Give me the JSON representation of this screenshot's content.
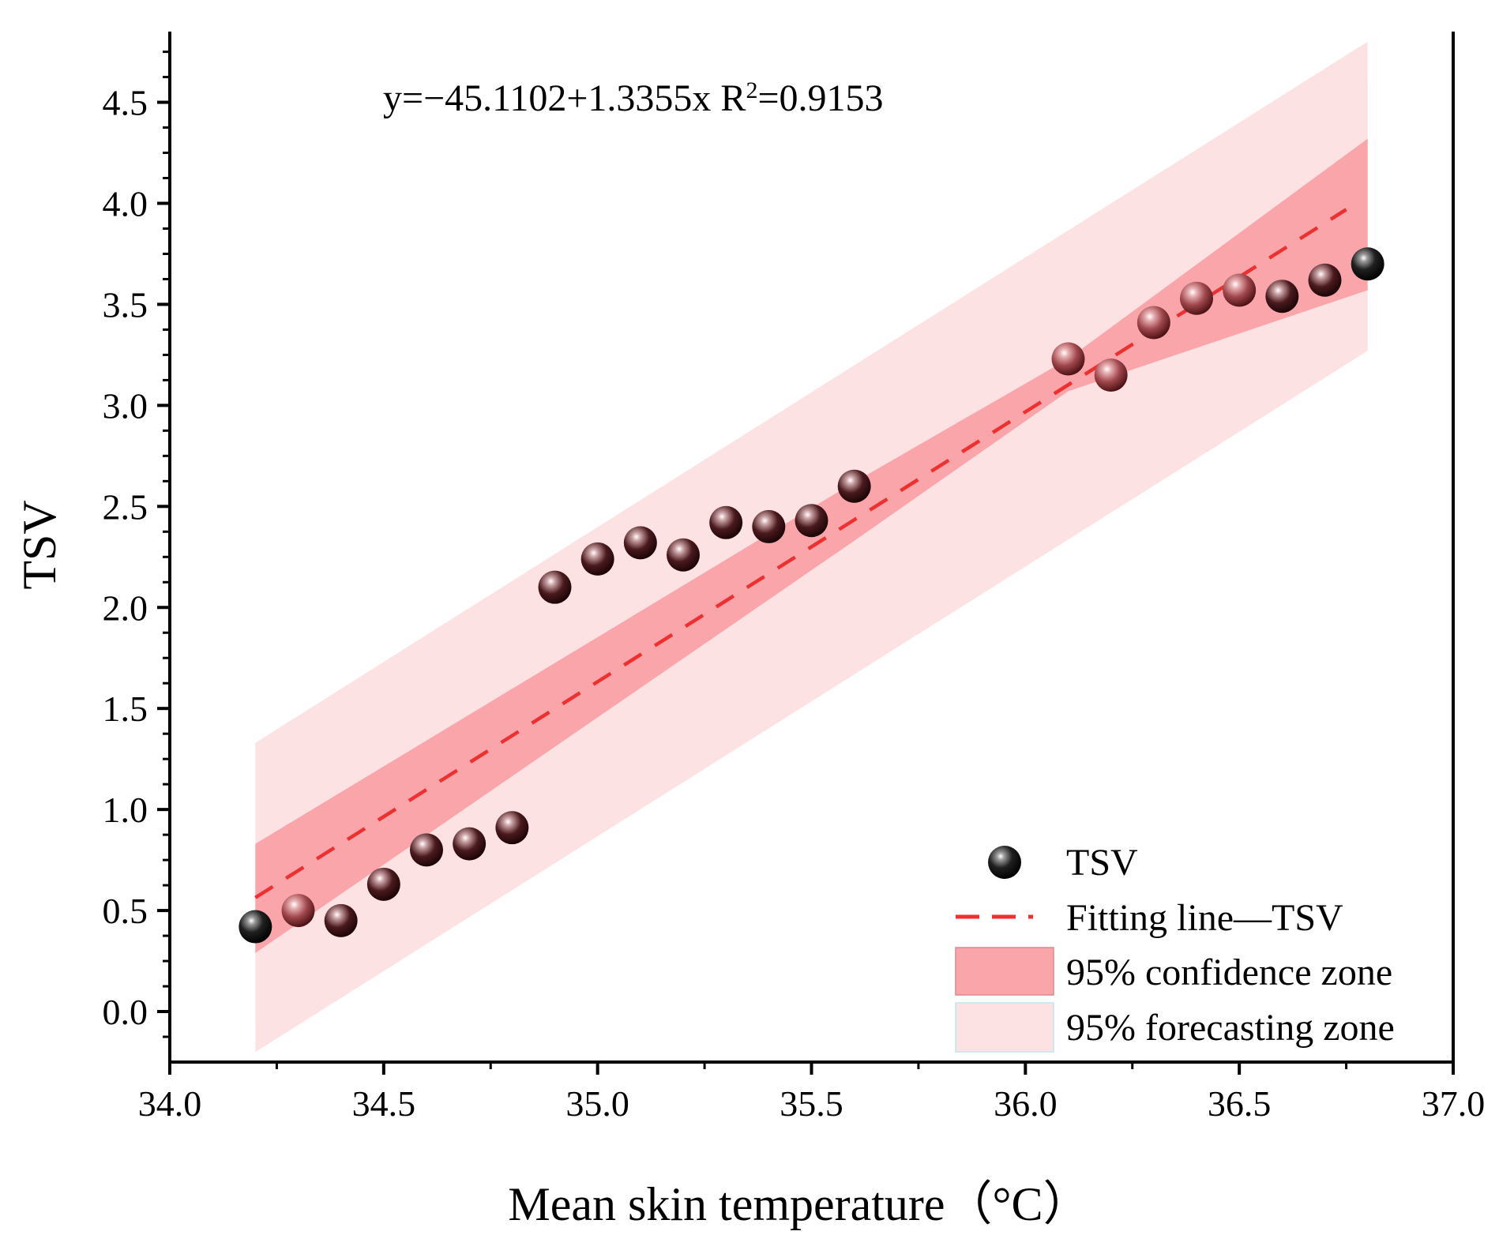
{
  "chart_data": {
    "type": "scatter",
    "title": "",
    "xlabel": "Mean skin temperature（°C）",
    "ylabel": "TSV",
    "xlim": [
      34.0,
      37.0
    ],
    "ylim": [
      -0.25,
      4.85
    ],
    "x_ticks": [
      34.0,
      34.5,
      35.0,
      35.5,
      36.0,
      36.5,
      37.0
    ],
    "x_tick_labels": [
      "34.0",
      "34.5",
      "35.0",
      "35.5",
      "36.0",
      "36.5",
      "37.0"
    ],
    "y_ticks": [
      0.0,
      0.5,
      1.0,
      1.5,
      2.0,
      2.5,
      3.0,
      3.5,
      4.0,
      4.5
    ],
    "y_tick_labels": [
      "0.0",
      "0.5",
      "1.0",
      "1.5",
      "2.0",
      "2.5",
      "3.0",
      "3.5",
      "4.0",
      "4.5"
    ],
    "grid": false,
    "equation": {
      "prefix": "y=−45.1102+1.3355x  R",
      "superscript": "2",
      "suffix": "=0.9153"
    },
    "fit": {
      "intercept": -45.1102,
      "slope": 1.3355,
      "r2": 0.9153,
      "x_range": [
        34.2,
        36.75
      ]
    },
    "confidence_zone": {
      "x": [
        34.2,
        35.6,
        36.1,
        36.8
      ],
      "upper": [
        0.83,
        2.62,
        3.23,
        4.32
      ],
      "lower": [
        0.29,
        2.33,
        3.07,
        3.57
      ]
    },
    "forecasting_zone": {
      "x": [
        34.2,
        36.8
      ],
      "upper": [
        1.33,
        4.8
      ],
      "lower": [
        -0.2,
        3.27
      ]
    },
    "series": [
      {
        "name": "TSV",
        "points": [
          {
            "x": 34.2,
            "y": 0.42
          },
          {
            "x": 34.3,
            "y": 0.5
          },
          {
            "x": 34.4,
            "y": 0.45
          },
          {
            "x": 34.5,
            "y": 0.63
          },
          {
            "x": 34.6,
            "y": 0.8
          },
          {
            "x": 34.7,
            "y": 0.83
          },
          {
            "x": 34.8,
            "y": 0.91
          },
          {
            "x": 34.9,
            "y": 2.1
          },
          {
            "x": 35.0,
            "y": 2.24
          },
          {
            "x": 35.1,
            "y": 2.32
          },
          {
            "x": 35.2,
            "y": 2.26
          },
          {
            "x": 35.3,
            "y": 2.42
          },
          {
            "x": 35.4,
            "y": 2.4
          },
          {
            "x": 35.5,
            "y": 2.43
          },
          {
            "x": 35.6,
            "y": 2.6
          },
          {
            "x": 36.1,
            "y": 3.23
          },
          {
            "x": 36.2,
            "y": 3.15
          },
          {
            "x": 36.3,
            "y": 3.41
          },
          {
            "x": 36.4,
            "y": 3.53
          },
          {
            "x": 36.5,
            "y": 3.57
          },
          {
            "x": 36.6,
            "y": 3.54
          },
          {
            "x": 36.7,
            "y": 3.62
          },
          {
            "x": 36.8,
            "y": 3.7
          }
        ]
      }
    ],
    "legend": {
      "placement": "bottom-right",
      "entries": [
        "TSV",
        "Fitting line—TSV",
        "95% confidence zone",
        "95% forecasting zone"
      ]
    },
    "colors": {
      "confidence": "#f9a5aa",
      "forecasting": "#fde2e4",
      "fit_line": "#ee3030",
      "point_dark": "#2a0a0c",
      "point_light": "#c97478"
    }
  }
}
